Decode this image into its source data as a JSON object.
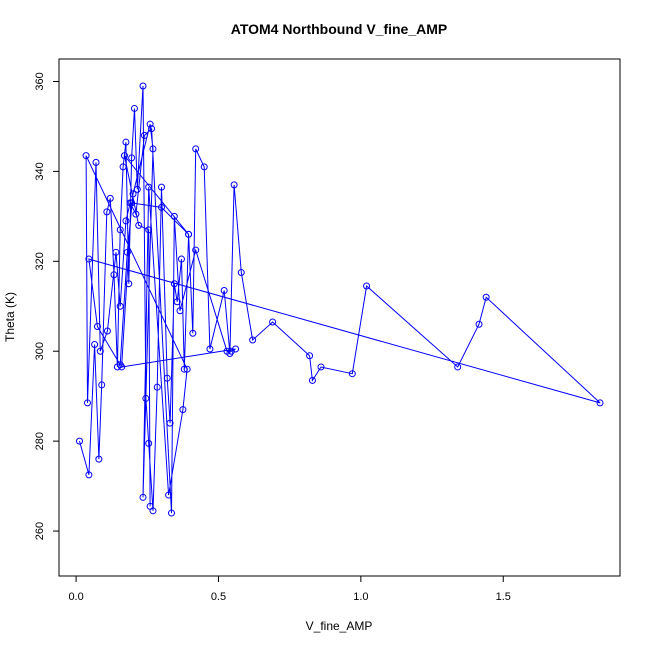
{
  "chart_data": {
    "type": "line",
    "title": "ATOM4 Northbound V_fine_AMP",
    "xlabel": "V_fine_AMP",
    "ylabel": "Theta (K)",
    "xlim": [
      -0.06,
      1.91
    ],
    "ylim": [
      250,
      365
    ],
    "xticks": [
      0.0,
      0.5,
      1.0,
      1.5
    ],
    "xtick_labels": [
      "0.0",
      "0.5",
      "1.0",
      "1.5"
    ],
    "yticks": [
      260,
      280,
      300,
      320,
      340,
      360
    ],
    "ytick_labels": [
      "260",
      "280",
      "300",
      "320",
      "340",
      "360"
    ],
    "grid": false,
    "legend": "none",
    "colors": {
      "series": "#0000ff",
      "frame": "#000000"
    },
    "series": [
      {
        "marker": "open-circle",
        "x": [
          0.012,
          0.045,
          0.065,
          0.08,
          0.09,
          0.108,
          0.12,
          0.133,
          0.145,
          0.155,
          0.165,
          0.175,
          0.185,
          0.195,
          0.205,
          0.215,
          0.235,
          0.245,
          0.255,
          0.27,
          0.285,
          0.3,
          0.32,
          0.33,
          0.345,
          0.355,
          0.37,
          0.38,
          0.395,
          0.41,
          0.42,
          0.45,
          0.47,
          0.52,
          0.54,
          0.555,
          0.58,
          0.62,
          0.69,
          0.82,
          0.83,
          0.86,
          0.97,
          1.02,
          1.34,
          1.415,
          1.44,
          1.84,
          0.045,
          0.075,
          0.155,
          0.18,
          0.2,
          0.26,
          0.27,
          0.235,
          0.255,
          0.325,
          0.375,
          0.39,
          0.035,
          0.04,
          0.07,
          0.085,
          0.11,
          0.14,
          0.155,
          0.175,
          0.19,
          0.21,
          0.24,
          0.265,
          0.335,
          0.345,
          0.365,
          0.42,
          0.53,
          0.545,
          0.56,
          0.16,
          0.195,
          0.3,
          0.395,
          0.17,
          0.22,
          0.255,
          0.26
        ],
        "y": [
          280,
          272.5,
          301.5,
          276,
          292.5,
          331,
          334,
          317,
          296.5,
          327,
          341,
          346.5,
          315,
          343,
          354,
          336,
          359,
          289.5,
          279.5,
          264.5,
          292,
          336.5,
          294,
          284,
          315,
          311,
          320.5,
          296,
          326,
          304,
          345,
          341,
          300.5,
          313.5,
          299.5,
          337,
          317.5,
          302.5,
          306.5,
          299,
          293.5,
          296.5,
          295,
          314.5,
          296.5,
          306,
          312,
          288.5,
          320.5,
          305.5,
          297,
          322,
          335,
          350.5,
          345,
          267.5,
          336.5,
          268,
          287,
          296,
          343.5,
          288.5,
          342,
          300,
          304.5,
          322,
          310,
          329,
          333,
          330.5,
          348,
          349.5,
          264,
          330,
          309,
          322.5,
          300,
          300,
          300.5,
          296.5,
          333,
          332,
          326,
          343.5,
          328,
          327,
          265.5
        ]
      }
    ]
  }
}
